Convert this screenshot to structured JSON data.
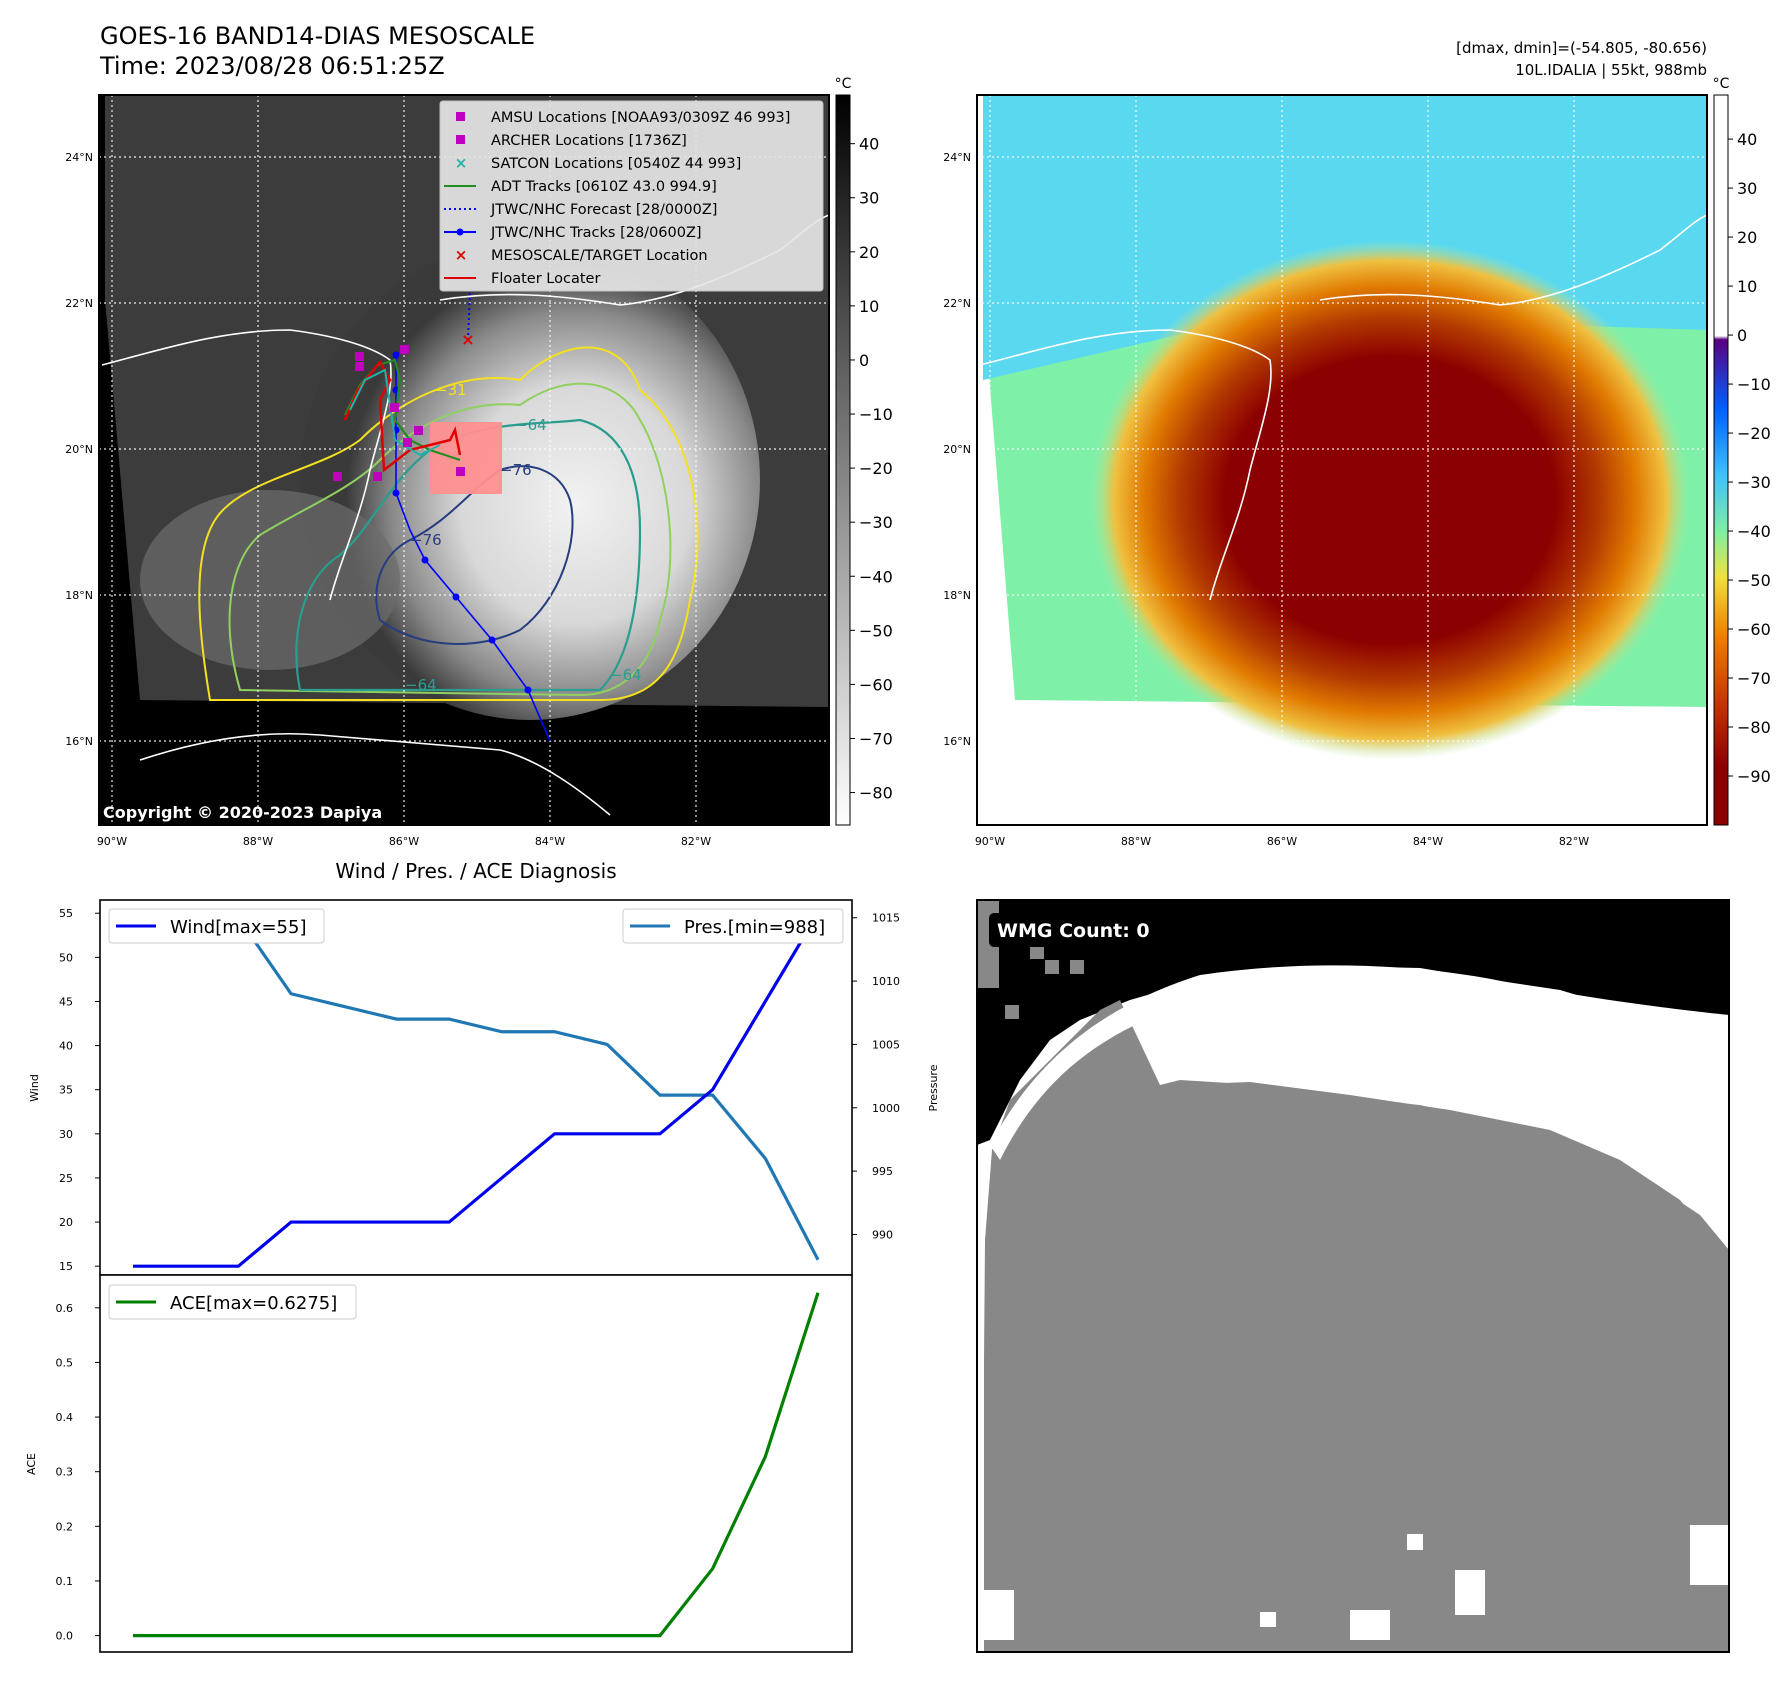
{
  "header": {
    "title_line1": "GOES-16 BAND14-DIAS MESOSCALE",
    "title_line2": "Time: 2023/08/28 06:51:25Z",
    "info_line1": "[dmax, dmin]=(-54.805, -80.656)",
    "info_line2": "10L.IDALIA | 55kt, 988mb"
  },
  "map_axes": {
    "lat_labels": [
      "24°N",
      "22°N",
      "20°N",
      "18°N",
      "16°N"
    ],
    "lon_labels": [
      "90°W",
      "88°W",
      "86°W",
      "84°W",
      "82°W"
    ]
  },
  "gray_colorbar": {
    "unit": "°C",
    "ticks": [
      "40",
      "30",
      "20",
      "10",
      "0",
      "−10",
      "−20",
      "−30",
      "−40",
      "−50",
      "−60",
      "−70",
      "−80"
    ]
  },
  "color_colorbar": {
    "unit": "°C",
    "ticks": [
      "40",
      "30",
      "20",
      "10",
      "0",
      "−10",
      "−20",
      "−30",
      "−40",
      "−50",
      "−60",
      "−70",
      "−80",
      "−90"
    ]
  },
  "legend": {
    "items": [
      {
        "label": "AMSU Locations [NOAA93/0309Z 46 993]",
        "color": "#c000c0",
        "marker": "square"
      },
      {
        "label": "ARCHER Locations [1736Z]",
        "color": "#c000c0",
        "marker": "square"
      },
      {
        "label": "SATCON Locations [0540Z 44 993]",
        "color": "#20b2aa",
        "marker": "x"
      },
      {
        "label": "ADT Tracks [0610Z 43.0 994.9]",
        "color": "#228b22",
        "marker": "line"
      },
      {
        "label": "JTWC/NHC Forecast [28/0000Z]",
        "color": "#0000ff",
        "marker": "dotted"
      },
      {
        "label": "JTWC/NHC Tracks [28/0600Z]",
        "color": "#0000ff",
        "marker": "line-dot"
      },
      {
        "label": "MESOSCALE/TARGET Location",
        "color": "#e00000",
        "marker": "x"
      },
      {
        "label": "Floater Locater",
        "color": "#e00000",
        "marker": "line"
      }
    ]
  },
  "contour_labels": [
    "−31",
    "−64",
    "−76",
    "−76",
    "−64",
    "−64"
  ],
  "copyright": "Copyright © 2020-2023 Dapiya",
  "wmg": {
    "label": "WMG Count: 0"
  },
  "chart_data": [
    {
      "type": "line",
      "title": "Wind / Pres. / ACE Diagnosis",
      "ylabel": "Wind",
      "y2label": "Pressure",
      "ylim": [
        14,
        56.5
      ],
      "y2lim": [
        986.8,
        1016.4
      ],
      "yticks": [
        15,
        20,
        25,
        30,
        35,
        40,
        45,
        50,
        55
      ],
      "y2ticks": [
        990,
        995,
        1000,
        1005,
        1010,
        1015
      ],
      "series": [
        {
          "name": "Wind[max=55]",
          "color": "#0000ee",
          "axis": "left",
          "values": [
            15,
            15,
            15,
            20,
            20,
            20,
            20,
            25,
            30,
            30,
            30,
            35,
            45,
            55
          ]
        },
        {
          "name": "Pres.[min=988]",
          "color": "#1f77b4",
          "axis": "right",
          "values": [
            1015,
            1015,
            1015,
            1009,
            1008,
            1007,
            1007,
            1006,
            1006,
            1005,
            1001,
            1001,
            996,
            988
          ]
        }
      ]
    },
    {
      "type": "line",
      "ylabel": "ACE",
      "ylim": [
        -0.03,
        0.66
      ],
      "yticks": [
        0.0,
        0.1,
        0.2,
        0.3,
        0.4,
        0.5,
        0.6
      ],
      "series": [
        {
          "name": "ACE[max=0.6275]",
          "color": "#008000",
          "values": [
            0,
            0,
            0,
            0,
            0,
            0,
            0,
            0,
            0,
            0,
            0,
            0.1225,
            0.3275,
            0.6275
          ]
        }
      ]
    }
  ]
}
